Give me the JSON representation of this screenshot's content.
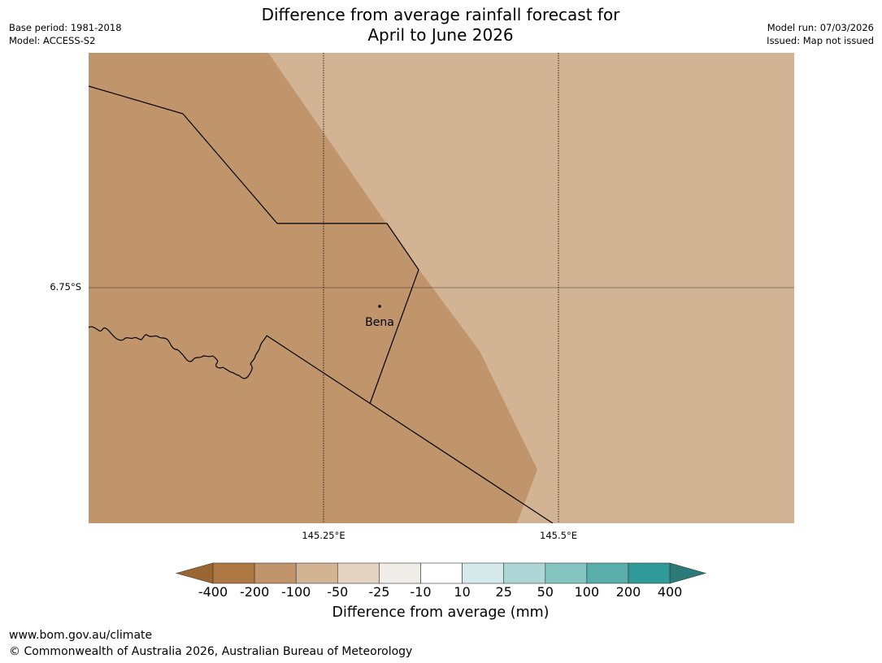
{
  "title": {
    "line1": "Difference from average rainfall forecast for",
    "line2": "April to June 2026"
  },
  "meta_left": {
    "base_period": "Base period: 1981-2018",
    "model": "Model: ACCESS-S2"
  },
  "meta_right": {
    "model_run": "Model run: 07/03/2026",
    "issued": "Issued: Map not issued"
  },
  "map": {
    "lat_gridline_label": "6.75°S",
    "lon_gridline_labels": [
      "145.25°E",
      "145.5°E"
    ],
    "place_label": "Bena",
    "colors": {
      "minus_200_to_minus_100": "#c0956b",
      "minus_100_to_minus_50": "#d2b394",
      "border": "#000000",
      "gridline": "#000000"
    }
  },
  "colorbar": {
    "ticks": [
      "-400",
      "-200",
      "-100",
      "-50",
      "-25",
      "-10",
      "10",
      "25",
      "50",
      "100",
      "200",
      "400"
    ],
    "colors": [
      "#9b6633",
      "#ad7741",
      "#c0956b",
      "#d2b394",
      "#e5d3c2",
      "#f0ece8",
      "#ffffff",
      "#d6eaeb",
      "#acd7d6",
      "#83c3c0",
      "#59adab",
      "#309a98",
      "#2a7b78"
    ],
    "title": "Difference from average (mm)"
  },
  "footer": {
    "url": "www.bom.gov.au/climate",
    "copyright": "© Commonwealth of Australia 2026, Australian Bureau of Meteorology"
  }
}
